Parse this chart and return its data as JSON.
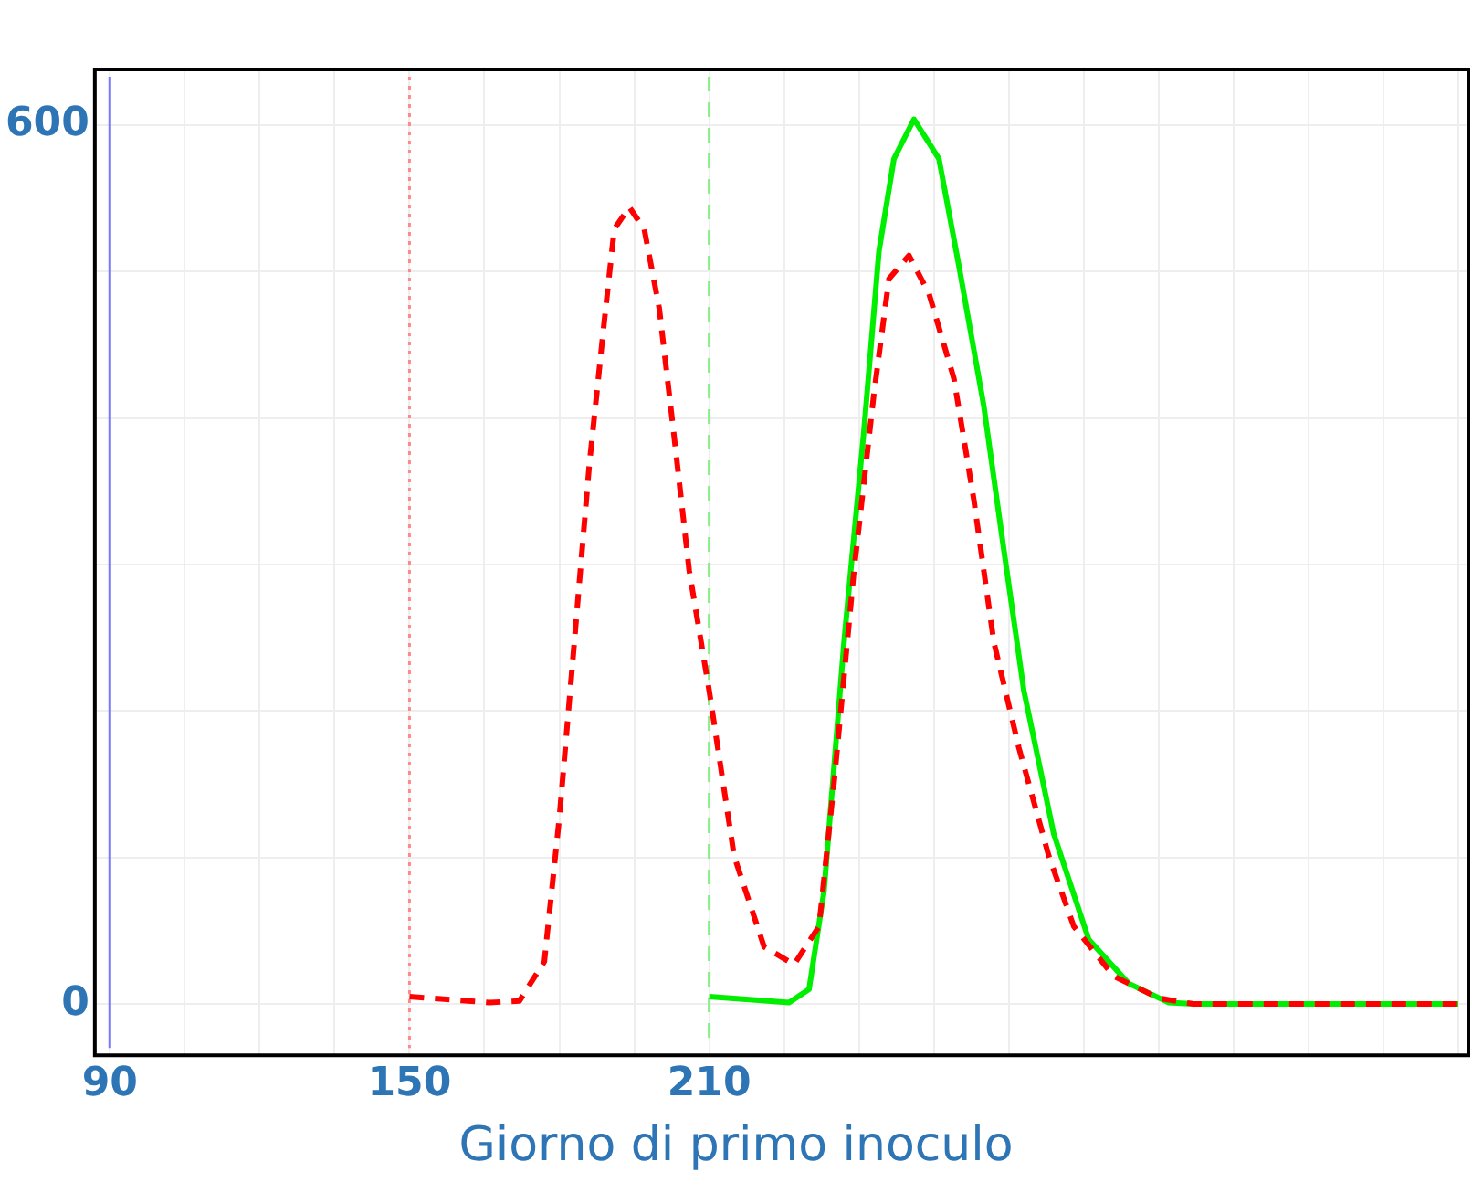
{
  "chart_data": {
    "type": "line",
    "xlabel": "Giorno di primo inoculo",
    "xlim": [
      87,
      362
    ],
    "ylim": [
      -35,
      638
    ],
    "xticks": [
      90,
      {
        "value": 105,
        "label": null
      },
      {
        "value": 120,
        "label": null
      },
      {
        "value": 135,
        "label": null
      },
      150,
      {
        "value": 165,
        "label": null
      },
      {
        "value": 180,
        "label": null
      },
      {
        "value": 195,
        "label": null
      },
      210,
      {
        "value": 225,
        "label": null
      },
      {
        "value": 240,
        "label": null
      },
      {
        "value": 255,
        "label": null
      },
      {
        "value": 270,
        "label": null
      },
      {
        "value": 285,
        "label": null
      },
      {
        "value": 300,
        "label": null
      },
      {
        "value": 315,
        "label": null
      },
      {
        "value": 330,
        "label": null
      },
      {
        "value": 345,
        "label": null
      },
      {
        "value": 360,
        "label": null
      }
    ],
    "yticks": [
      0,
      {
        "value": 100,
        "label": null
      },
      {
        "value": 200,
        "label": null
      },
      {
        "value": 300,
        "label": null
      },
      {
        "value": 400,
        "label": null
      },
      {
        "value": 500,
        "label": null
      },
      600
    ],
    "grid": true,
    "marker": "none",
    "ref_lines": [
      {
        "axis": "x",
        "value": 90,
        "color": "#7777ff",
        "line_style": "solid"
      },
      {
        "axis": "x",
        "value": 150,
        "color": "#ff8888",
        "line_style": "dotted"
      },
      {
        "axis": "x",
        "value": 210,
        "color": "#88ee88",
        "line_style": "dashed"
      }
    ],
    "series": [
      {
        "color": "#ff0000",
        "line_style": "dashed",
        "x": [
          150,
          166,
          172,
          177,
          180,
          183,
          186,
          189,
          191,
          194,
          197,
          200,
          203,
          206,
          210,
          215,
          221,
          227,
          232,
          235,
          239,
          243,
          246,
          250,
          254,
          259,
          263,
          267,
          272,
          278,
          283,
          291,
          300,
          307,
          360
        ],
        "values": [
          5,
          1,
          2,
          29,
          127,
          247,
          368,
          466,
          529,
          544,
          529,
          475,
          387,
          296,
          214,
          101,
          39,
          27,
          53,
          151,
          296,
          417,
          495,
          511,
          485,
          427,
          344,
          247,
          175,
          101,
          53,
          19,
          4,
          0,
          0
        ]
      },
      {
        "color": "#00ee00",
        "line_style": "solid",
        "x": [
          210,
          226,
          230,
          233,
          237,
          241,
          244,
          247,
          251,
          256,
          260,
          265,
          269,
          273,
          279,
          286,
          294,
          302,
          307,
          360
        ],
        "values": [
          5,
          1,
          10,
          77,
          247,
          392,
          514,
          577,
          604,
          577,
          504,
          408,
          310,
          214,
          116,
          44,
          14,
          1,
          0,
          0
        ]
      }
    ]
  }
}
